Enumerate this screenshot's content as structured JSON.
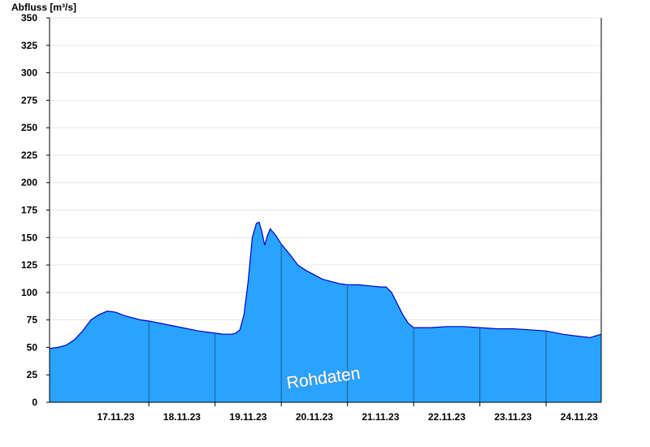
{
  "chart_data": {
    "type": "area",
    "ylabel": "Abfluss [m³/s]",
    "xlabel": "",
    "title": "",
    "watermark": "Rohdaten",
    "ylim": [
      0,
      350
    ],
    "yticks": [
      0,
      25,
      50,
      75,
      100,
      125,
      150,
      175,
      200,
      225,
      250,
      275,
      300,
      325,
      350
    ],
    "xlim": [
      "2023-11-16T12:00",
      "2023-11-24T20:00"
    ],
    "xticks": [
      {
        "label": "17.11.23",
        "at": "2023-11-17T12:00"
      },
      {
        "label": "18.11.23",
        "at": "2023-11-18T12:00"
      },
      {
        "label": "19.11.23",
        "at": "2023-11-19T12:00"
      },
      {
        "label": "20.11.23",
        "at": "2023-11-20T12:00"
      },
      {
        "label": "21.11.23",
        "at": "2023-11-21T12:00"
      },
      {
        "label": "22.11.23",
        "at": "2023-11-22T12:00"
      },
      {
        "label": "23.11.23",
        "at": "2023-11-23T12:00"
      },
      {
        "label": "24.11.23",
        "at": "2023-11-24T12:00"
      }
    ],
    "day_boundaries": [
      "2023-11-18T00:00",
      "2023-11-19T00:00",
      "2023-11-20T00:00",
      "2023-11-21T00:00",
      "2023-11-22T00:00",
      "2023-11-23T00:00",
      "2023-11-24T00:00"
    ],
    "grid": "horizontal",
    "colors": {
      "fill": "#29a3ff",
      "line": "#0000cc",
      "grid": "#e6e6e6",
      "day_line": "#1f5a8a"
    },
    "series": [
      {
        "x": [
          "2023-11-16T12:00",
          "2023-11-16T15:00",
          "2023-11-16T18:00",
          "2023-11-16T21:00",
          "2023-11-17T00:00",
          "2023-11-17T03:00",
          "2023-11-17T06:00",
          "2023-11-17T09:00",
          "2023-11-17T12:00",
          "2023-11-17T15:00",
          "2023-11-17T18:00",
          "2023-11-17T21:00",
          "2023-11-18T00:00",
          "2023-11-18T06:00",
          "2023-11-18T12:00",
          "2023-11-18T18:00",
          "2023-11-19T00:00",
          "2023-11-19T03:00",
          "2023-11-19T06:00",
          "2023-11-19T07:30",
          "2023-11-19T09:00",
          "2023-11-19T10:30",
          "2023-11-19T12:00",
          "2023-11-19T13:30",
          "2023-11-19T15:00",
          "2023-11-19T16:00",
          "2023-11-19T17:00",
          "2023-11-19T18:00",
          "2023-11-19T19:00",
          "2023-11-19T20:00",
          "2023-11-19T22:00",
          "2023-11-20T00:00",
          "2023-11-20T03:00",
          "2023-11-20T06:00",
          "2023-11-20T09:00",
          "2023-11-20T12:00",
          "2023-11-20T15:00",
          "2023-11-20T18:00",
          "2023-11-20T21:00",
          "2023-11-21T00:00",
          "2023-11-21T04:00",
          "2023-11-21T08:00",
          "2023-11-21T12:00",
          "2023-11-21T14:00",
          "2023-11-21T16:00",
          "2023-11-21T18:00",
          "2023-11-21T20:00",
          "2023-11-21T22:00",
          "2023-11-22T00:00",
          "2023-11-22T06:00",
          "2023-11-22T12:00",
          "2023-11-22T18:00",
          "2023-11-23T00:00",
          "2023-11-23T06:00",
          "2023-11-23T12:00",
          "2023-11-23T18:00",
          "2023-11-24T00:00",
          "2023-11-24T06:00",
          "2023-11-24T12:00",
          "2023-11-24T16:00",
          "2023-11-24T20:00"
        ],
        "y": [
          49,
          50,
          52,
          57,
          65,
          75,
          80,
          83,
          82,
          79,
          77,
          75,
          74,
          71,
          68,
          65,
          63,
          62,
          62,
          63,
          66,
          80,
          110,
          150,
          163,
          164,
          155,
          143,
          152,
          158,
          152,
          144,
          135,
          125,
          120,
          116,
          112,
          110,
          108,
          107,
          107,
          106,
          105,
          105,
          100,
          90,
          80,
          72,
          68,
          68,
          69,
          69,
          68,
          67,
          67,
          66,
          65,
          62,
          60,
          59,
          62
        ]
      }
    ]
  }
}
